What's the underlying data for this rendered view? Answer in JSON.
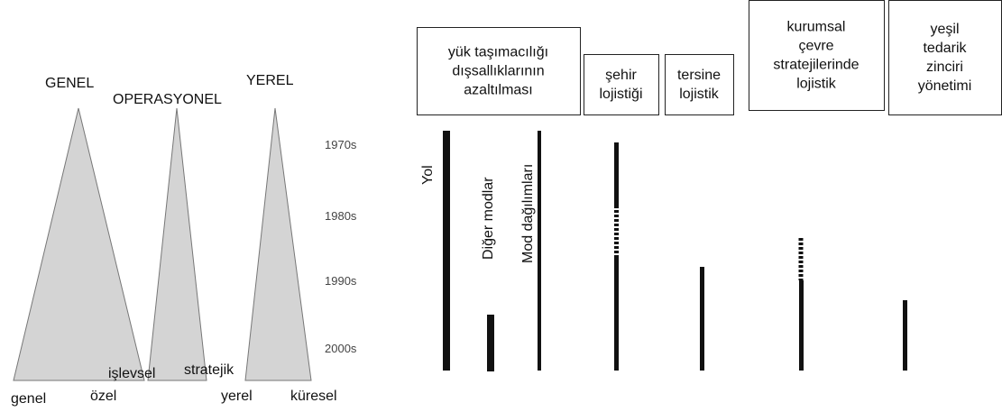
{
  "triangles": {
    "labels": [
      "GENEL",
      "OPERASYONEL",
      "YEREL"
    ],
    "decades": [
      "1970s",
      "1980s",
      "1990s",
      "2000s"
    ],
    "bottom_labels": [
      "genel",
      "özel",
      "işlevsel",
      "stratejik",
      "yerel",
      "küresel"
    ]
  },
  "boxes": [
    {
      "lines": [
        "yük taşımacılığı",
        "dışsallıklarının",
        "azaltılması"
      ]
    },
    {
      "lines": [
        "şehir",
        "lojistiği"
      ]
    },
    {
      "lines": [
        "tersine",
        "lojistik"
      ]
    },
    {
      "lines": [
        "kurumsal",
        "çevre",
        "stratejilerinde",
        "lojistik"
      ]
    },
    {
      "lines": [
        "yeşil",
        "tedarik",
        "zinciri",
        "yönetimi"
      ]
    }
  ],
  "bar_labels": [
    "Yol",
    "Diğer modlar",
    "Mod dağılımları"
  ]
}
